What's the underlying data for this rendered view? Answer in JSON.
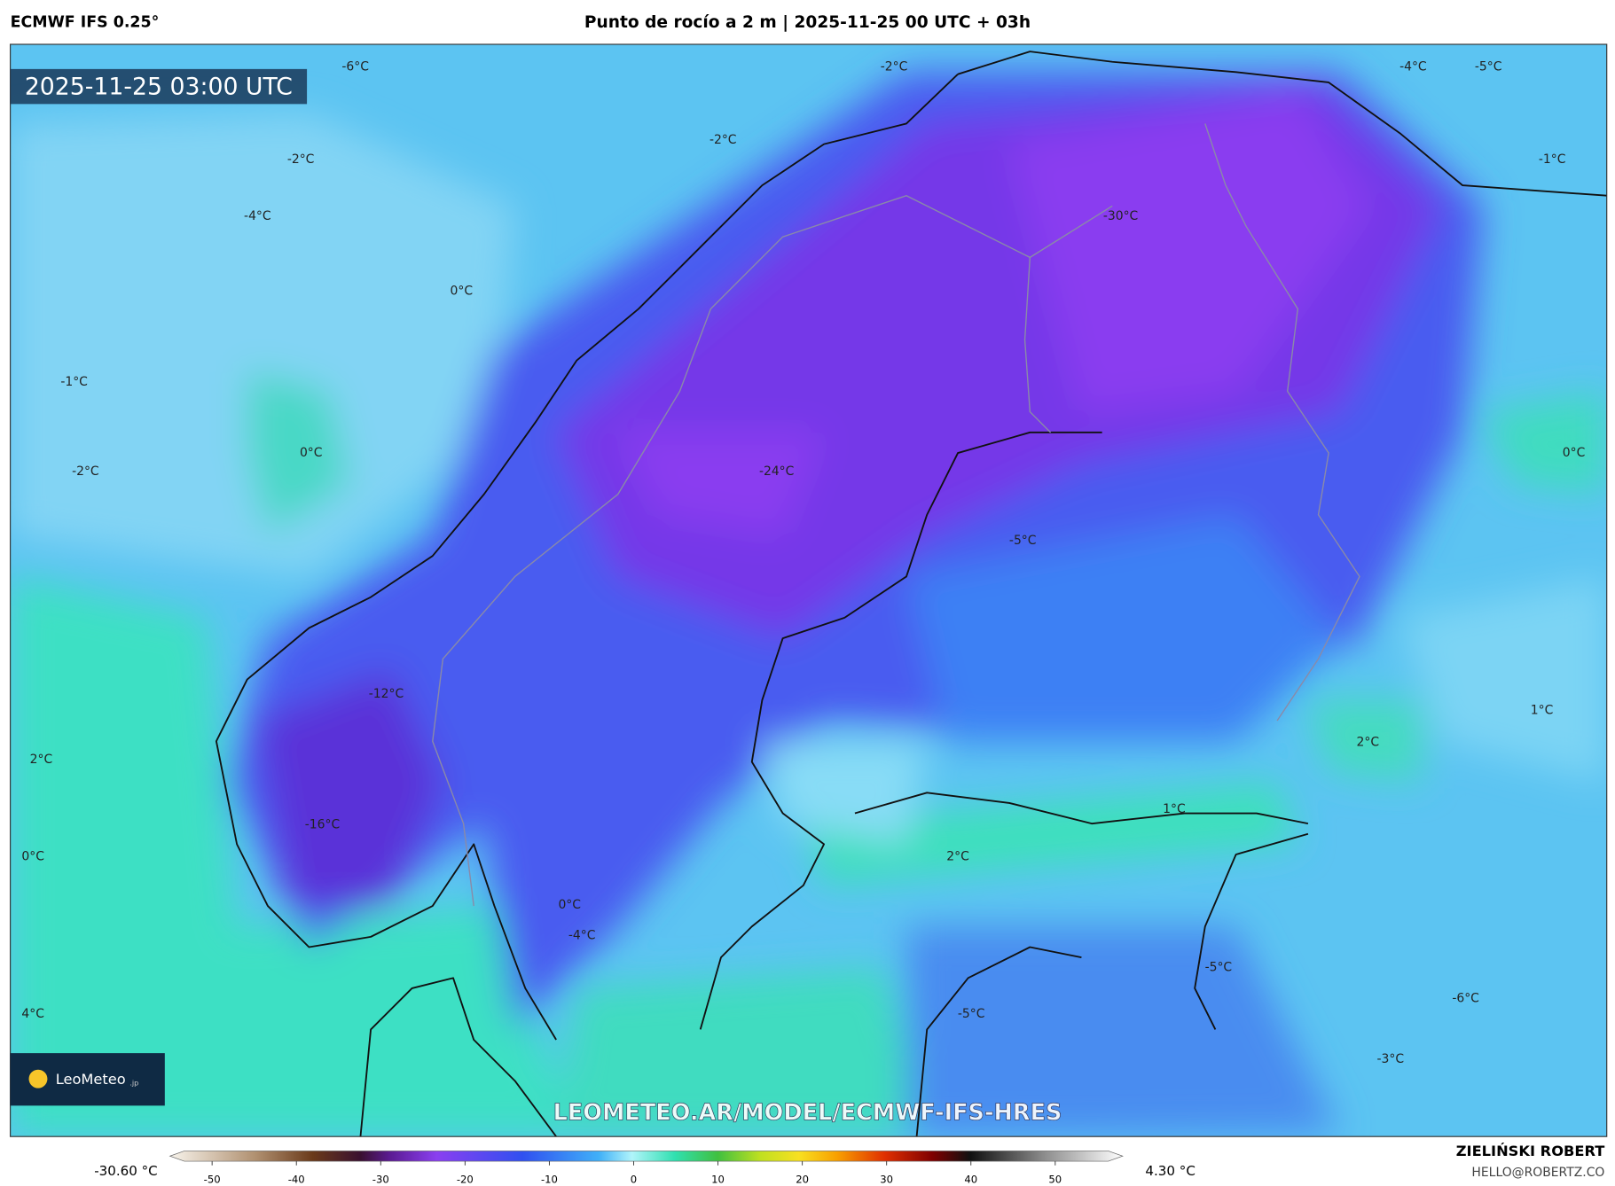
{
  "header": {
    "model": "ECMWF IFS 0.25°",
    "title": "Punto de rocío a 2 m | 2025-11-25 00 UTC + 03h"
  },
  "map": {
    "timestamp": "2025-11-25 03:00 UTC",
    "watermark": "LEOMETEO.AR/MODEL/ECMWF-IFS-HRES",
    "logo": {
      "name": "LeoMeteo",
      "suffix": ".jp"
    },
    "contour_labels": [
      "-6°C",
      "-2°C",
      "-4°C",
      "-5°C",
      "-2°C",
      "-2°C",
      "-1°C",
      "-4°C",
      "-30°C",
      "0°C",
      "-1°C",
      "0°C",
      "-2°C",
      "-24°C",
      "0°C",
      "-5°C",
      "-12°C",
      "1°C",
      "2°C",
      "2°C",
      "1°C",
      "-16°C",
      "0°C",
      "2°C",
      "0°C",
      "-4°C",
      "-5°C",
      "-6°C",
      "-5°C",
      "4°C",
      "-3°C"
    ]
  },
  "colorbar": {
    "min_label": "-30.60 °C",
    "max_label": "4.30 °C",
    "range": [
      -55,
      58
    ],
    "ticks": [
      -50,
      -40,
      -30,
      -20,
      -10,
      0,
      10,
      20,
      30,
      40,
      50
    ]
  },
  "footer": {
    "author": "ZIELIŃSKI ROBERT",
    "email": "HELLO@ROBERTZ.CO"
  }
}
